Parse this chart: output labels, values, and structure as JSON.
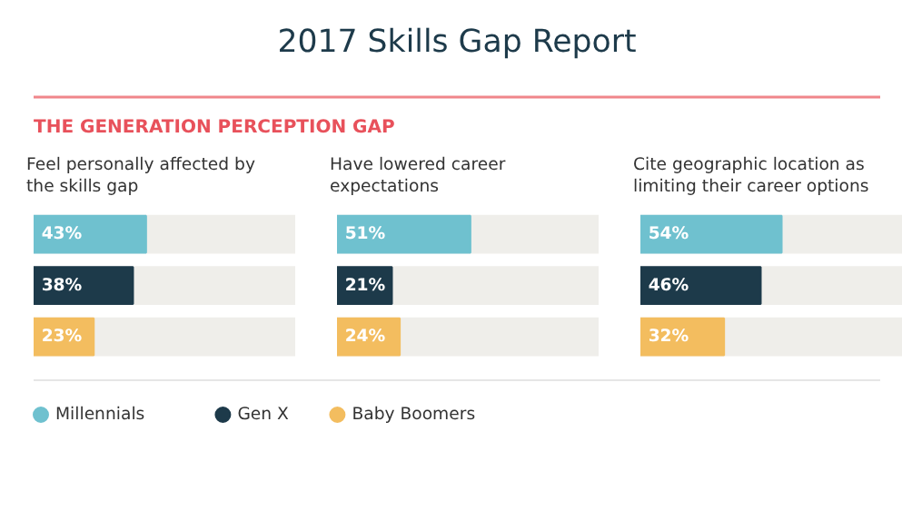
{
  "chart_data": [
    {
      "type": "other",
      "title": "2017 Skills Gap Report",
      "subtitle": "THE GENERATION PERCEPTION GAP"
    },
    {
      "type": "bar",
      "orientation": "horizontal",
      "title": "Feel personally affected by the skills gap",
      "categories": [
        null
      ],
      "xlim": [
        0,
        100
      ],
      "legend": "bottom",
      "series": [
        {
          "name": "Millennials",
          "color": "#6fc1cf",
          "values": [
            43
          ],
          "value_labels": [
            "43%"
          ]
        },
        {
          "name": "Gen X",
          "color": "#1d3a4a",
          "values": [
            38
          ],
          "value_labels": [
            "38%"
          ]
        },
        {
          "name": "Baby Boomers",
          "color": "#f3bd5f",
          "values": [
            23
          ],
          "value_labels": [
            "23%"
          ]
        }
      ]
    },
    {
      "type": "bar",
      "orientation": "horizontal",
      "title": "Have lowered career expectations",
      "categories": [
        null
      ],
      "xlim": [
        0,
        100
      ],
      "series": [
        {
          "color": "#6fc1cf",
          "values": [
            51
          ],
          "value_labels": [
            "51%"
          ]
        },
        {
          "color": "#1d3a4a",
          "values": [
            21
          ],
          "value_labels": [
            "21%"
          ]
        },
        {
          "color": "#f3bd5f",
          "values": [
            24
          ],
          "value_labels": [
            "24%"
          ]
        }
      ]
    },
    {
      "type": "bar",
      "orientation": "horizontal",
      "title": "Cite geographic location as limiting their career options",
      "categories": [
        null
      ],
      "xlim": [
        0,
        100
      ],
      "series": [
        {
          "color": "#6fc1cf",
          "values": [
            54
          ],
          "value_labels": [
            "54%"
          ]
        },
        {
          "color": "#1d3a4a",
          "values": [
            46
          ],
          "value_labels": [
            "46%"
          ]
        },
        {
          "color": "#f3bd5f",
          "values": [
            32
          ],
          "value_labels": [
            "32%"
          ]
        }
      ]
    }
  ]
}
